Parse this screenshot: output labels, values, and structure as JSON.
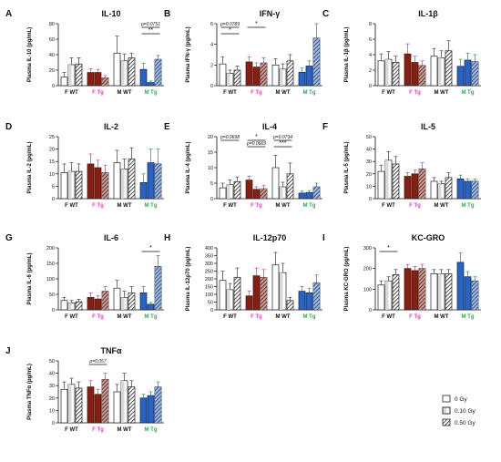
{
  "legend": {
    "items": [
      {
        "label": "0 Gy",
        "fill": "white"
      },
      {
        "label": "0.10 Gy",
        "fill": "half"
      },
      {
        "label": "0.50 Gy",
        "fill": "hatch"
      }
    ]
  },
  "colors": {
    "F WT": "#ffffff",
    "F Tg": "#8b1d10",
    "M WT": "#ffffff",
    "M Tg": "#2563c9",
    "outline": "#222222",
    "error_F": "#e040c0",
    "error_M": "#22b24c"
  },
  "chart_data": [
    {
      "type": "bar",
      "panel": "A",
      "title": "IL-10",
      "ylabel": "Plasma IL-10 (pg/mL)",
      "ylim": [
        0,
        80
      ],
      "yticks": [
        "0",
        "20",
        "40",
        "60",
        "80"
      ],
      "categories": [
        "F WT",
        "F Tg",
        "M WT",
        "M Tg"
      ],
      "series": [
        {
          "values": [
            11,
            17,
            42,
            21
          ],
          "errors": [
            6,
            5,
            22,
            8
          ]
        },
        {
          "values": [
            27,
            17,
            32,
            4
          ],
          "errors": [
            9,
            4,
            9,
            2
          ]
        },
        {
          "values": [
            28,
            10,
            36,
            34
          ],
          "errors": [
            8,
            3,
            6,
            5
          ]
        }
      ],
      "annotations": [
        {
          "text": "p=0.0751",
          "group": 3
        },
        {
          "text": "**",
          "group": 3
        }
      ]
    },
    {
      "type": "bar",
      "panel": "B",
      "title": "IFN-γ",
      "ylabel": "Plasma IFN-γ (pg/mL)",
      "ylim": [
        0,
        6
      ],
      "yticks": [
        "0",
        "2",
        "4",
        "6"
      ],
      "categories": [
        "F WT",
        "F Tg",
        "M WT",
        "M Tg"
      ],
      "series": [
        {
          "values": [
            2.1,
            2.3,
            2.0,
            1.3
          ],
          "errors": [
            0.7,
            0.5,
            0.6,
            0.4
          ]
        },
        {
          "values": [
            1.2,
            1.8,
            1.6,
            1.9
          ],
          "errors": [
            0.3,
            0.4,
            0.5,
            0.5
          ]
        },
        {
          "values": [
            1.5,
            2.2,
            2.4,
            4.6
          ],
          "errors": [
            0.4,
            0.5,
            0.6,
            1.5
          ]
        }
      ],
      "annotations": [
        {
          "text": "p=0.0789",
          "group": 0
        },
        {
          "text": "*",
          "group": 0
        },
        {
          "text": "*",
          "group": 1
        }
      ]
    },
    {
      "type": "bar",
      "panel": "C",
      "title": "IL-1β",
      "ylabel": "Plasma IL-1β (pg/mL)",
      "ylim": [
        0,
        8
      ],
      "yticks": [
        "0",
        "2",
        "4",
        "6",
        "8"
      ],
      "categories": [
        "F WT",
        "F Tg",
        "M WT",
        "M Tg"
      ],
      "series": [
        {
          "values": [
            3.2,
            4.1,
            3.8,
            2.5
          ],
          "errors": [
            0.9,
            1.3,
            1.0,
            0.9
          ]
        },
        {
          "values": [
            3.4,
            3.0,
            3.6,
            3.3
          ],
          "errors": [
            1.0,
            0.8,
            0.9,
            0.9
          ]
        },
        {
          "values": [
            3.0,
            2.6,
            4.5,
            3.1
          ],
          "errors": [
            0.8,
            0.6,
            1.3,
            0.9
          ]
        }
      ],
      "annotations": []
    },
    {
      "type": "bar",
      "panel": "D",
      "title": "IL-2",
      "ylabel": "Plasma IL-2 (pg/mL)",
      "ylim": [
        0,
        25
      ],
      "yticks": [
        "0",
        "5",
        "10",
        "15",
        "20",
        "25"
      ],
      "categories": [
        "F WT",
        "F Tg",
        "M WT",
        "M Tg"
      ],
      "series": [
        {
          "values": [
            10.5,
            14,
            14.5,
            6.5
          ],
          "errors": [
            3.5,
            4,
            5,
            3.5
          ]
        },
        {
          "values": [
            11,
            12.5,
            12,
            14.5
          ],
          "errors": [
            3.5,
            3,
            4,
            5.5
          ]
        },
        {
          "values": [
            11,
            10.5,
            16,
            14
          ],
          "errors": [
            3,
            3,
            4.5,
            6
          ]
        }
      ],
      "annotations": []
    },
    {
      "type": "bar",
      "panel": "E",
      "title": "IL-4",
      "ylabel": "Plasma IL-4 (pg/mL)",
      "ylim": [
        0,
        20
      ],
      "yticks": [
        "0",
        "5",
        "10",
        "15",
        "20"
      ],
      "categories": [
        "F WT",
        "F Tg",
        "M WT",
        "M Tg"
      ],
      "series": [
        {
          "values": [
            3.5,
            6,
            10,
            1.8
          ],
          "errors": [
            1.5,
            1.2,
            4,
            0.6
          ]
        },
        {
          "values": [
            4.5,
            3,
            3.8,
            2
          ],
          "errors": [
            1.5,
            0.8,
            1.5,
            0.6
          ]
        },
        {
          "values": [
            5.5,
            3.2,
            8,
            3.8
          ],
          "errors": [
            1.5,
            1,
            3.5,
            1.2
          ]
        }
      ],
      "annotations": [
        {
          "text": "p=0.0698",
          "group": 0
        },
        {
          "text": "p=0.0669",
          "group": 1
        },
        {
          "text": "*",
          "group": 1
        },
        {
          "text": "***",
          "group": 2
        },
        {
          "text": "p=0.0734",
          "group": 2
        }
      ]
    },
    {
      "type": "bar",
      "panel": "F",
      "title": "IL-5",
      "ylabel": "Plasma IL-5 (pg/mL)",
      "ylim": [
        0,
        50
      ],
      "yticks": [
        "0",
        "10",
        "20",
        "30",
        "40",
        "50"
      ],
      "categories": [
        "F WT",
        "F Tg",
        "M WT",
        "M Tg"
      ],
      "series": [
        {
          "values": [
            22,
            18,
            14,
            16
          ],
          "errors": [
            5,
            3,
            3,
            3
          ]
        },
        {
          "values": [
            31,
            20,
            12,
            14
          ],
          "errors": [
            7,
            3,
            2,
            2
          ]
        },
        {
          "values": [
            28,
            24,
            17,
            14
          ],
          "errors": [
            6,
            5,
            4,
            2
          ]
        }
      ],
      "annotations": []
    },
    {
      "type": "bar",
      "panel": "G",
      "title": "IL-6",
      "ylabel": "Plasma IL-6 (pg/mL)",
      "ylim": [
        0,
        200
      ],
      "yticks": [
        "0",
        "50",
        "100",
        "150",
        "200"
      ],
      "categories": [
        "F WT",
        "F Tg",
        "M WT",
        "M Tg"
      ],
      "series": [
        {
          "values": [
            30,
            40,
            70,
            55
          ],
          "errors": [
            10,
            15,
            25,
            20
          ]
        },
        {
          "values": [
            22,
            35,
            40,
            18
          ],
          "errors": [
            8,
            10,
            20,
            6
          ]
        },
        {
          "values": [
            26,
            60,
            55,
            140
          ],
          "errors": [
            8,
            15,
            20,
            35
          ]
        }
      ],
      "annotations": [
        {
          "text": "*",
          "group": 3
        }
      ]
    },
    {
      "type": "bar",
      "panel": "H",
      "title": "IL-12p70",
      "ylabel": "Plasma IL-12p70 (pg/mL)",
      "ylim": [
        0,
        400
      ],
      "yticks": [
        "0",
        "50",
        "100",
        "150",
        "200",
        "250",
        "300",
        "350",
        "400"
      ],
      "categories": [
        "F WT",
        "F Tg",
        "M WT",
        "M Tg"
      ],
      "series": [
        {
          "values": [
            190,
            90,
            290,
            120
          ],
          "errors": [
            60,
            30,
            80,
            30
          ]
        },
        {
          "values": [
            130,
            220,
            240,
            110
          ],
          "errors": [
            40,
            50,
            60,
            30
          ]
        },
        {
          "values": [
            210,
            210,
            60,
            175
          ],
          "errors": [
            60,
            50,
            20,
            50
          ]
        }
      ],
      "annotations": []
    },
    {
      "type": "bar",
      "panel": "I",
      "title": "KC-GRO",
      "ylabel": "Plasma KC-GRO (pg/mL)",
      "ylim": [
        0,
        300
      ],
      "yticks": [
        "0",
        "100",
        "200",
        "300"
      ],
      "categories": [
        "F WT",
        "F Tg",
        "M WT",
        "M Tg"
      ],
      "series": [
        {
          "values": [
            120,
            200,
            175,
            230
          ],
          "errors": [
            20,
            20,
            20,
            45
          ]
        },
        {
          "values": [
            140,
            190,
            175,
            160
          ],
          "errors": [
            20,
            20,
            20,
            25
          ]
        },
        {
          "values": [
            170,
            200,
            175,
            140
          ],
          "errors": [
            25,
            20,
            20,
            20
          ]
        }
      ],
      "annotations": [
        {
          "text": "*",
          "group": 0
        }
      ]
    },
    {
      "type": "bar",
      "panel": "J",
      "title": "TNFα",
      "ylabel": "Plasma TNFα (pg/mL)",
      "ylim": [
        0,
        50
      ],
      "yticks": [
        "0",
        "10",
        "20",
        "30",
        "40",
        "50"
      ],
      "categories": [
        "F WT",
        "F Tg",
        "M WT",
        "M Tg"
      ],
      "series": [
        {
          "values": [
            27,
            29,
            25,
            20
          ],
          "errors": [
            6,
            5,
            6,
            3
          ]
        },
        {
          "values": [
            31,
            23,
            34,
            22
          ],
          "errors": [
            5,
            4,
            6,
            3
          ]
        },
        {
          "values": [
            28,
            35,
            29,
            29
          ],
          "errors": [
            5,
            5,
            5,
            4
          ]
        }
      ],
      "annotations": [
        {
          "text": "p=0.057",
          "group": 1
        }
      ]
    }
  ]
}
